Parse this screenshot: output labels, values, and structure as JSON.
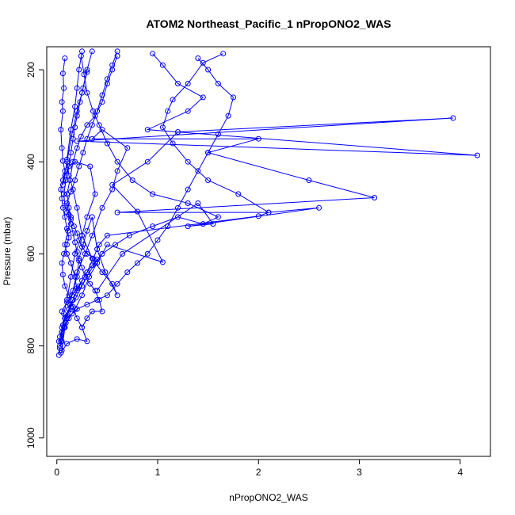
{
  "chart_data": {
    "type": "line",
    "title": "ATOM2 Northeast_Pacific_1 nPropONO2_WAS",
    "xlabel": "nPropONO2_WAS",
    "ylabel": "Pressure (mbar)",
    "xlim": [
      -0.1,
      4.3
    ],
    "ylim": [
      1040,
      150
    ],
    "y_reversed": true,
    "x_ticks": [
      0,
      1,
      2,
      3,
      4
    ],
    "x_tick_labels": [
      "0",
      "1",
      "2",
      "3",
      "4"
    ],
    "y_ticks": [
      200,
      400,
      600,
      800,
      1000
    ],
    "y_tick_labels": [
      "200",
      "400",
      "600",
      "800",
      "1000"
    ],
    "grid": false,
    "legend": "none",
    "markers": "open-circle",
    "color": "#0000ff",
    "series": [
      {
        "values": [
          [
            0.02,
            820
          ],
          [
            0.03,
            805
          ],
          [
            0.05,
            790
          ],
          [
            0.08,
            760
          ],
          [
            0.12,
            720
          ],
          [
            0.15,
            690
          ],
          [
            0.2,
            640
          ],
          [
            0.28,
            600
          ],
          [
            0.35,
            560
          ],
          [
            0.45,
            500
          ],
          [
            0.55,
            460
          ],
          [
            0.6,
            420
          ],
          [
            0.7,
            370
          ],
          [
            0.45,
            330
          ],
          [
            0.35,
            350
          ],
          [
            2.0,
            350
          ],
          [
            1.5,
            380
          ],
          [
            2.5,
            440
          ],
          [
            3.15,
            478
          ],
          [
            0.6,
            510
          ],
          [
            2.1,
            510
          ],
          [
            2.6,
            500
          ],
          [
            1.3,
            540
          ],
          [
            1.55,
            535
          ],
          [
            1.4,
            490
          ],
          [
            0.65,
            600
          ],
          [
            0.4,
            680
          ]
        ]
      },
      {
        "values": [
          [
            0.03,
            800
          ],
          [
            0.05,
            770
          ],
          [
            0.07,
            730
          ],
          [
            0.1,
            700
          ],
          [
            0.14,
            650
          ],
          [
            0.18,
            600
          ],
          [
            0.25,
            560
          ],
          [
            0.3,
            520
          ],
          [
            0.38,
            470
          ],
          [
            0.33,
            410
          ],
          [
            0.18,
            400
          ],
          [
            0.12,
            410
          ],
          [
            0.08,
            430
          ],
          [
            0.06,
            450
          ],
          [
            0.1,
            400
          ],
          [
            0.15,
            340
          ],
          [
            0.2,
            290
          ],
          [
            0.25,
            250
          ],
          [
            0.3,
            200
          ],
          [
            0.35,
            160
          ]
        ]
      },
      {
        "values": [
          [
            0.05,
            810
          ],
          [
            0.08,
            760
          ],
          [
            0.12,
            740
          ],
          [
            0.18,
            720
          ],
          [
            0.25,
            690
          ],
          [
            0.32,
            650
          ],
          [
            0.4,
            620
          ],
          [
            0.5,
            580
          ],
          [
            1.05,
            618
          ],
          [
            0.8,
            508
          ],
          [
            0.55,
            450
          ],
          [
            0.9,
            400
          ],
          [
            1.2,
            335
          ],
          [
            3.93,
            305
          ],
          [
            0.2,
            355
          ],
          [
            4.17,
            386
          ],
          [
            0.9,
            330
          ],
          [
            1.3,
            290
          ],
          [
            1.45,
            260
          ],
          [
            1.2,
            230
          ],
          [
            1.05,
            190
          ],
          [
            0.95,
            165
          ]
        ]
      },
      {
        "values": [
          [
            0.04,
            790
          ],
          [
            0.07,
            760
          ],
          [
            0.1,
            740
          ],
          [
            0.13,
            710
          ],
          [
            0.16,
            680
          ],
          [
            0.2,
            650
          ],
          [
            0.22,
            610
          ],
          [
            0.26,
            580
          ],
          [
            0.3,
            550
          ],
          [
            0.35,
            520
          ],
          [
            0.4,
            590
          ],
          [
            0.48,
            640
          ],
          [
            0.6,
            690
          ],
          [
            0.55,
            665
          ],
          [
            0.45,
            640
          ],
          [
            0.35,
            610
          ],
          [
            0.25,
            560
          ],
          [
            0.2,
            500
          ],
          [
            0.16,
            460
          ],
          [
            0.12,
            430
          ],
          [
            0.1,
            395
          ],
          [
            0.14,
            330
          ],
          [
            0.18,
            280
          ],
          [
            0.2,
            240
          ],
          [
            0.22,
            200
          ],
          [
            0.25,
            160
          ]
        ]
      },
      {
        "values": [
          [
            0.02,
            790
          ],
          [
            0.05,
            770
          ],
          [
            0.09,
            750
          ],
          [
            0.12,
            720
          ],
          [
            0.16,
            700
          ],
          [
            0.2,
            680
          ],
          [
            0.18,
            650
          ],
          [
            0.14,
            620
          ],
          [
            0.1,
            600
          ],
          [
            0.08,
            580
          ],
          [
            0.11,
            550
          ],
          [
            0.14,
            520
          ],
          [
            0.12,
            500
          ],
          [
            0.1,
            470
          ],
          [
            0.13,
            440
          ],
          [
            0.16,
            400
          ],
          [
            0.2,
            370
          ],
          [
            0.24,
            345
          ],
          [
            0.3,
            320
          ],
          [
            0.38,
            300
          ],
          [
            0.45,
            270
          ],
          [
            0.5,
            230
          ],
          [
            0.55,
            200
          ],
          [
            0.6,
            170
          ]
        ]
      },
      {
        "values": [
          [
            0.05,
            760
          ],
          [
            0.08,
            740
          ],
          [
            0.12,
            720
          ],
          [
            0.16,
            700
          ],
          [
            0.22,
            670
          ],
          [
            0.3,
            640
          ],
          [
            0.36,
            610
          ],
          [
            0.42,
            580
          ],
          [
            0.5,
            560
          ],
          [
            2.0,
            518
          ],
          [
            2.1,
            510
          ],
          [
            1.8,
            470
          ],
          [
            1.5,
            440
          ],
          [
            1.3,
            400
          ],
          [
            1.15,
            360
          ],
          [
            1.05,
            325
          ],
          [
            1.1,
            290
          ],
          [
            1.15,
            265
          ],
          [
            1.3,
            230
          ],
          [
            1.45,
            185
          ],
          [
            1.65,
            165
          ]
        ]
      },
      {
        "values": [
          [
            0.03,
            780
          ],
          [
            0.06,
            755
          ],
          [
            0.1,
            735
          ],
          [
            0.14,
            715
          ],
          [
            0.19,
            695
          ],
          [
            0.25,
            670
          ],
          [
            0.31,
            645
          ],
          [
            0.38,
            620
          ],
          [
            0.45,
            600
          ],
          [
            0.58,
            580
          ],
          [
            0.72,
            560
          ],
          [
            0.95,
            540
          ],
          [
            1.2,
            520
          ],
          [
            1.45,
            535
          ],
          [
            1.6,
            520
          ],
          [
            1.3,
            490
          ],
          [
            0.95,
            470
          ],
          [
            0.75,
            440
          ],
          [
            0.6,
            400
          ],
          [
            0.5,
            360
          ],
          [
            0.42,
            320
          ],
          [
            0.36,
            290
          ],
          [
            0.3,
            250
          ],
          [
            0.27,
            210
          ],
          [
            0.24,
            170
          ]
        ]
      },
      {
        "values": [
          [
            0.1,
            740
          ],
          [
            0.15,
            730
          ],
          [
            0.2,
            720
          ],
          [
            0.3,
            710
          ],
          [
            0.4,
            700
          ],
          [
            0.5,
            690
          ],
          [
            0.6,
            665
          ],
          [
            0.7,
            640
          ],
          [
            0.8,
            620
          ],
          [
            0.9,
            600
          ],
          [
            1.0,
            570
          ],
          [
            1.1,
            540
          ],
          [
            1.2,
            500
          ],
          [
            1.3,
            460
          ],
          [
            1.4,
            420
          ],
          [
            1.5,
            380
          ],
          [
            1.6,
            340
          ],
          [
            1.7,
            300
          ],
          [
            1.75,
            260
          ],
          [
            1.6,
            230
          ],
          [
            1.5,
            200
          ],
          [
            1.4,
            175
          ]
        ]
      },
      {
        "values": [
          [
            0.05,
            725
          ],
          [
            0.1,
            705
          ],
          [
            0.15,
            690
          ],
          [
            0.2,
            675
          ],
          [
            0.25,
            658
          ],
          [
            0.3,
            640
          ],
          [
            0.35,
            625
          ],
          [
            0.4,
            612
          ],
          [
            0.3,
            600
          ],
          [
            0.25,
            585
          ],
          [
            0.22,
            570
          ],
          [
            0.2,
            555
          ],
          [
            0.17,
            540
          ],
          [
            0.14,
            525
          ],
          [
            0.1,
            510
          ],
          [
            0.08,
            495
          ],
          [
            0.07,
            470
          ],
          [
            0.09,
            440
          ],
          [
            0.12,
            410
          ],
          [
            0.14,
            380
          ],
          [
            0.16,
            350
          ],
          [
            0.18,
            325
          ],
          [
            0.2,
            300
          ],
          [
            0.23,
            270
          ],
          [
            0.26,
            240
          ],
          [
            0.3,
            205
          ]
        ]
      },
      {
        "values": [
          [
            0.04,
            815
          ],
          [
            0.1,
            795
          ],
          [
            0.2,
            785
          ],
          [
            0.3,
            790
          ],
          [
            0.25,
            760
          ],
          [
            0.2,
            740
          ],
          [
            0.16,
            715
          ],
          [
            0.12,
            690
          ],
          [
            0.08,
            670
          ],
          [
            0.06,
            645
          ],
          [
            0.05,
            620
          ],
          [
            0.07,
            600
          ],
          [
            0.1,
            580
          ],
          [
            0.12,
            565
          ],
          [
            0.1,
            545
          ],
          [
            0.08,
            520
          ],
          [
            0.06,
            500
          ],
          [
            0.05,
            480
          ],
          [
            0.04,
            460
          ],
          [
            0.06,
            440
          ],
          [
            0.08,
            420
          ],
          [
            0.06,
            398
          ],
          [
            0.05,
            370
          ],
          [
            0.04,
            330
          ],
          [
            0.06,
            290
          ],
          [
            0.05,
            270
          ],
          [
            0.07,
            240
          ],
          [
            0.06,
            208
          ],
          [
            0.08,
            175
          ]
        ]
      },
      {
        "values": [
          [
            0.25,
            760
          ],
          [
            0.3,
            740
          ],
          [
            0.35,
            725
          ],
          [
            0.45,
            725
          ],
          [
            0.42,
            700
          ],
          [
            0.38,
            680
          ],
          [
            0.33,
            665
          ],
          [
            0.28,
            650
          ],
          [
            0.25,
            630
          ],
          [
            0.22,
            615
          ],
          [
            0.2,
            595
          ],
          [
            0.18,
            575
          ],
          [
            0.16,
            555
          ],
          [
            0.14,
            535
          ],
          [
            0.12,
            515
          ],
          [
            0.1,
            490
          ],
          [
            0.14,
            465
          ],
          [
            0.18,
            440
          ],
          [
            0.22,
            410
          ],
          [
            0.26,
            380
          ],
          [
            0.3,
            350
          ],
          [
            0.35,
            320
          ],
          [
            0.4,
            290
          ],
          [
            0.45,
            255
          ],
          [
            0.5,
            220
          ],
          [
            0.55,
            190
          ],
          [
            0.6,
            160
          ]
        ]
      }
    ]
  }
}
